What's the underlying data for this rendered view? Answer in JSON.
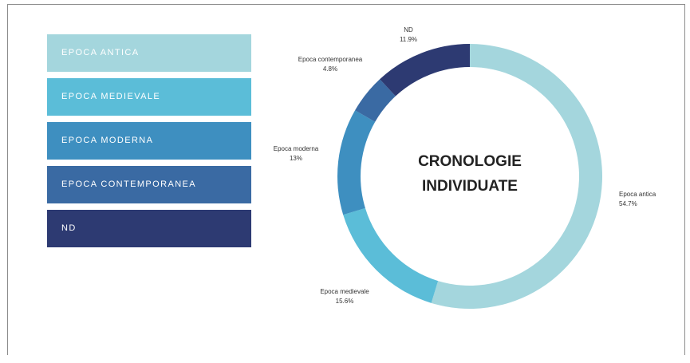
{
  "legend": {
    "items": [
      {
        "label": "EPOCA ANTICA",
        "color": "#a4d6dd"
      },
      {
        "label": "EPOCA MEDIEVALE",
        "color": "#5bbdd8"
      },
      {
        "label": "EPOCA MODERNA",
        "color": "#3e8fc0"
      },
      {
        "label": "EPOCA CONTEMPORANEA",
        "color": "#3a6aa3"
      },
      {
        "label": "ND",
        "color": "#2d3a72"
      }
    ]
  },
  "chart_data": {
    "type": "pie",
    "variant": "donut",
    "title": "CRONOLOGIE INDIVIDUATE",
    "slices": [
      {
        "label": "Epoca antica",
        "value": 54.7,
        "value_label": "54.7%",
        "color": "#a4d6dd"
      },
      {
        "label": "Epoca medievale",
        "value": 15.6,
        "value_label": "15.6%",
        "color": "#5bbdd8"
      },
      {
        "label": "Epoca moderna",
        "value": 13,
        "value_label": "13%",
        "color": "#3e8fc0"
      },
      {
        "label": "Epoca contemporanea",
        "value": 4.8,
        "value_label": "4.8%",
        "color": "#3a6aa3"
      },
      {
        "label": "ND",
        "value": 11.9,
        "value_label": "11.9%",
        "color": "#2d3a72"
      }
    ]
  }
}
